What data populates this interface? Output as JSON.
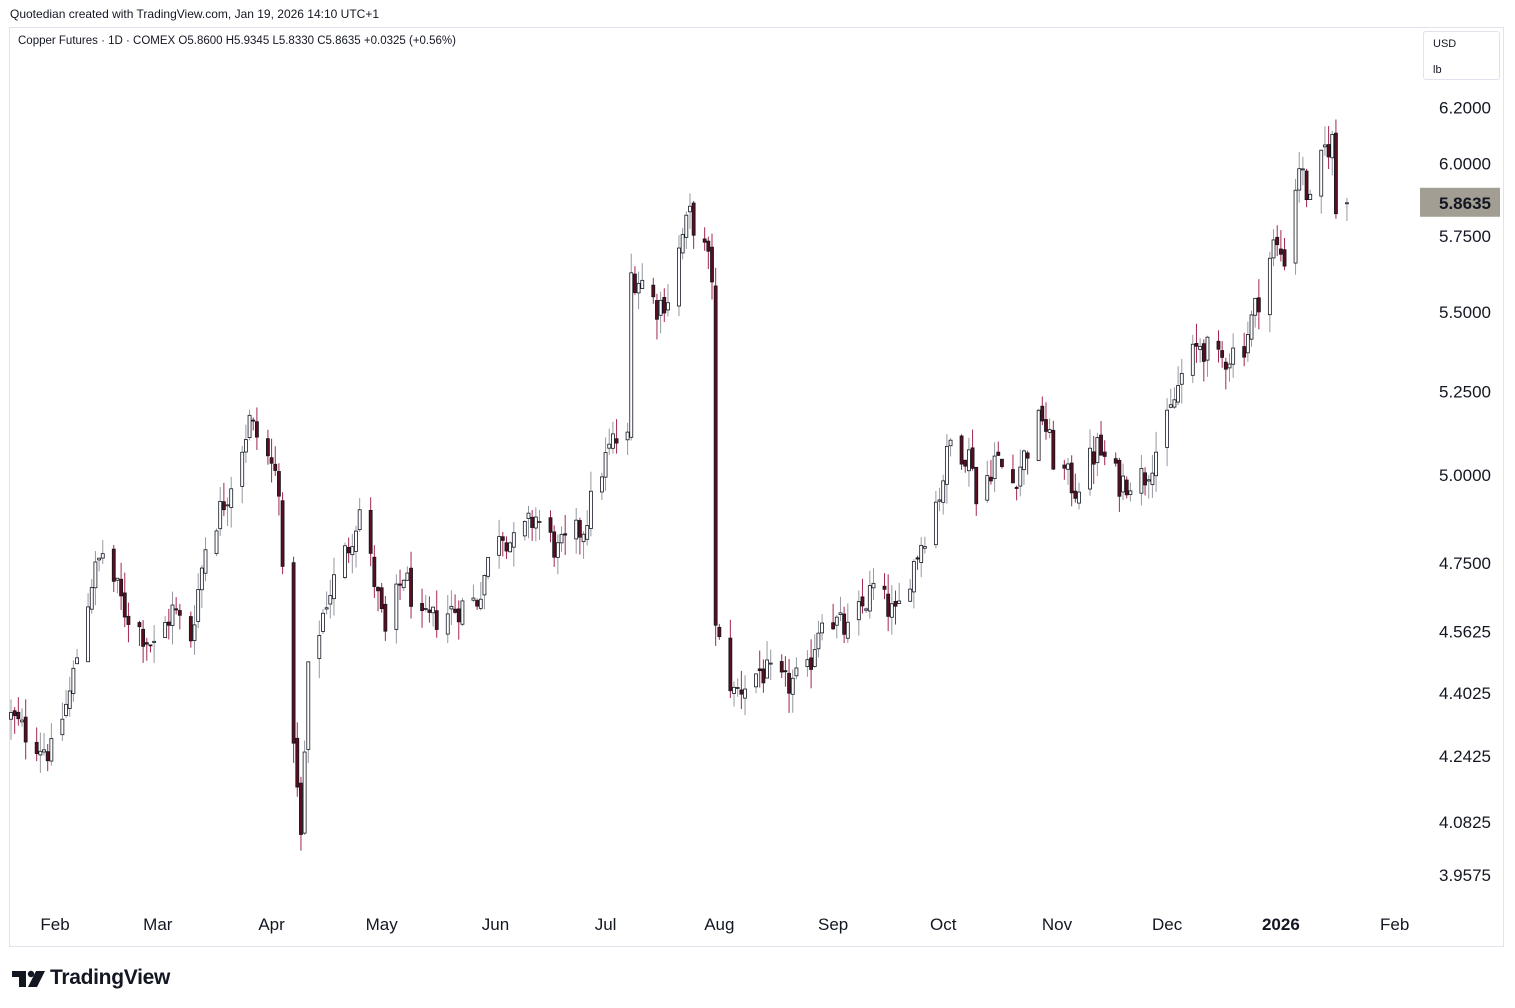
{
  "caption": "Quotedian created with TradingView.com, Jan 19, 2026 14:10 UTC+1",
  "legend": {
    "symbol": "Copper Futures · 1D · COMEX",
    "open": "O5.8600",
    "high": "H5.9345",
    "low": "L5.8330",
    "close": "C5.8635",
    "change": "+0.0325 (+0.56%)"
  },
  "unit": {
    "currency": "USD",
    "measure": "lb"
  },
  "last_price_label": "5.8635",
  "brand": "TradingView",
  "icons": {
    "logo": "tradingview-logo-icon"
  },
  "colors": {
    "up_body": "#ffffff",
    "down_body": "#5d0d1c",
    "outline": "#131722",
    "up_wick": "#9598a1",
    "down_wick": "#a3264f",
    "price_tag": "#a39e93"
  },
  "chart_data": {
    "type": "candlestick",
    "title": "Copper Futures · 1D · COMEX",
    "y_scale": "log",
    "y_ticks": [
      6.2,
      6.0,
      5.75,
      5.5,
      5.25,
      5.0,
      4.75,
      4.5625,
      4.4025,
      4.2425,
      4.0825,
      3.9575
    ],
    "y_tick_labels": [
      "6.2000",
      "6.0000",
      "5.7500",
      "5.5000",
      "5.2500",
      "5.0000",
      "4.7500",
      "4.5625",
      "4.4025",
      "4.2425",
      "4.0825",
      "3.9575"
    ],
    "ylim": [
      3.9,
      6.3
    ],
    "x_range": [
      "2025-01-20",
      "2026-02-06"
    ],
    "x_ticks": [
      {
        "date": "2025-02-01",
        "label": "Feb"
      },
      {
        "date": "2025-03-01",
        "label": "Mar"
      },
      {
        "date": "2025-04-01",
        "label": "Apr"
      },
      {
        "date": "2025-05-01",
        "label": "May"
      },
      {
        "date": "2025-06-01",
        "label": "Jun"
      },
      {
        "date": "2025-07-01",
        "label": "Jul"
      },
      {
        "date": "2025-08-01",
        "label": "Aug"
      },
      {
        "date": "2025-09-01",
        "label": "Sep"
      },
      {
        "date": "2025-10-01",
        "label": "Oct"
      },
      {
        "date": "2025-11-01",
        "label": "Nov"
      },
      {
        "date": "2025-12-01",
        "label": "Dec"
      },
      {
        "date": "2026-01-01",
        "label": "2026"
      },
      {
        "date": "2026-02-01",
        "label": "Feb"
      }
    ],
    "last_close": 5.8635,
    "anchors": [
      [
        "2025-01-20",
        4.34
      ],
      [
        "2025-01-24",
        4.3
      ],
      [
        "2025-01-31",
        4.25
      ],
      [
        "2025-02-05",
        4.4
      ],
      [
        "2025-02-11",
        4.7
      ],
      [
        "2025-02-14",
        4.78
      ],
      [
        "2025-02-20",
        4.62
      ],
      [
        "2025-02-28",
        4.52
      ],
      [
        "2025-03-05",
        4.62
      ],
      [
        "2025-03-10",
        4.55
      ],
      [
        "2025-03-14",
        4.8
      ],
      [
        "2025-03-20",
        4.95
      ],
      [
        "2025-03-26",
        5.16
      ],
      [
        "2025-03-31",
        5.05
      ],
      [
        "2025-04-03",
        4.98
      ],
      [
        "2025-04-04",
        4.7
      ],
      [
        "2025-04-07",
        4.3
      ],
      [
        "2025-04-08",
        4.15
      ],
      [
        "2025-04-09",
        4.04
      ],
      [
        "2025-04-11",
        4.45
      ],
      [
        "2025-04-16",
        4.65
      ],
      [
        "2025-04-22",
        4.8
      ],
      [
        "2025-04-25",
        4.9
      ],
      [
        "2025-05-02",
        4.55
      ],
      [
        "2025-05-07",
        4.72
      ],
      [
        "2025-05-12",
        4.58
      ],
      [
        "2025-05-20",
        4.62
      ],
      [
        "2025-05-27",
        4.65
      ],
      [
        "2025-06-02",
        4.85
      ],
      [
        "2025-06-06",
        4.8
      ],
      [
        "2025-06-12",
        4.88
      ],
      [
        "2025-06-18",
        4.78
      ],
      [
        "2025-06-25",
        4.85
      ],
      [
        "2025-06-30",
        5.02
      ],
      [
        "2025-07-03",
        5.1
      ],
      [
        "2025-07-07",
        5.1
      ],
      [
        "2025-07-08",
        5.62
      ],
      [
        "2025-07-11",
        5.6
      ],
      [
        "2025-07-15",
        5.52
      ],
      [
        "2025-07-18",
        5.55
      ],
      [
        "2025-07-22",
        5.75
      ],
      [
        "2025-07-24",
        5.82
      ],
      [
        "2025-07-28",
        5.7
      ],
      [
        "2025-07-30",
        5.62
      ],
      [
        "2025-07-31",
        4.56
      ],
      [
        "2025-08-05",
        4.4
      ],
      [
        "2025-08-12",
        4.46
      ],
      [
        "2025-08-19",
        4.42
      ],
      [
        "2025-08-25",
        4.45
      ],
      [
        "2025-08-29",
        4.62
      ],
      [
        "2025-09-05",
        4.56
      ],
      [
        "2025-09-12",
        4.68
      ],
      [
        "2025-09-18",
        4.6
      ],
      [
        "2025-09-24",
        4.78
      ],
      [
        "2025-09-30",
        4.95
      ],
      [
        "2025-10-03",
        5.1
      ],
      [
        "2025-10-09",
        5.05
      ],
      [
        "2025-10-10",
        4.92
      ],
      [
        "2025-10-15",
        5.05
      ],
      [
        "2025-10-20",
        4.98
      ],
      [
        "2025-10-28",
        5.18
      ],
      [
        "2025-10-31",
        5.05
      ],
      [
        "2025-11-06",
        4.96
      ],
      [
        "2025-11-12",
        5.08
      ],
      [
        "2025-11-18",
        4.98
      ],
      [
        "2025-11-25",
        5.0
      ],
      [
        "2025-12-01",
        5.15
      ],
      [
        "2025-12-05",
        5.3
      ],
      [
        "2025-12-10",
        5.4
      ],
      [
        "2025-12-15",
        5.34
      ],
      [
        "2025-12-22",
        5.4
      ],
      [
        "2025-12-26",
        5.55
      ],
      [
        "2025-12-30",
        5.72
      ],
      [
        "2026-01-02",
        5.68
      ],
      [
        "2026-01-06",
        6.0
      ],
      [
        "2026-01-09",
        5.85
      ],
      [
        "2026-01-13",
        6.05
      ],
      [
        "2026-01-15",
        6.08
      ],
      [
        "2026-01-16",
        5.831
      ],
      [
        "2026-01-19",
        5.8635
      ]
    ]
  }
}
